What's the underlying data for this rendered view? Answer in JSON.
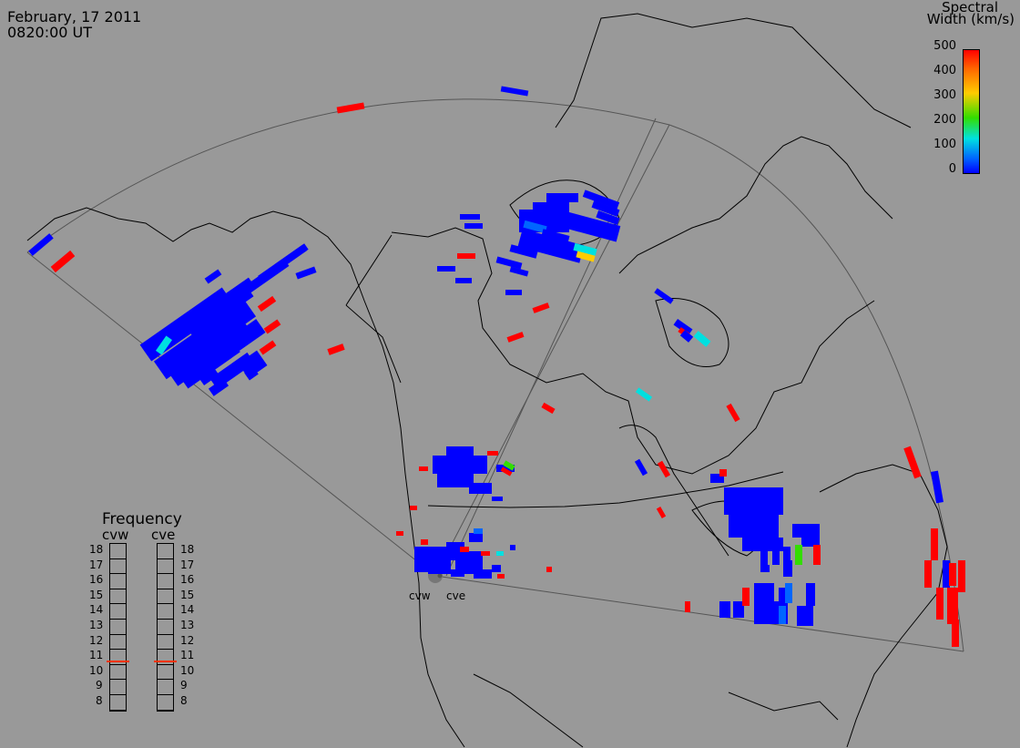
{
  "header": {
    "date": "February, 17 2011",
    "time": "0820:00 UT"
  },
  "colorbar": {
    "title_line1": "Spectral",
    "title_line2": "Width (km/s)",
    "ticks": [
      "500",
      "400",
      "300",
      "200",
      "100",
      "0"
    ]
  },
  "frequency": {
    "title": "Frequency",
    "radars": [
      "cvw",
      "cve"
    ],
    "levels": [
      "18",
      "17",
      "16",
      "15",
      "14",
      "13",
      "12",
      "11",
      "10",
      "9",
      "8"
    ],
    "selected": {
      "cvw": 10.8,
      "cve": 10.8
    }
  },
  "radar_labels": {
    "west": "cvw",
    "east": "cve"
  },
  "colors": {
    "background": "#999999",
    "low": "#0000ff",
    "high": "#ff0000",
    "mid": "#00e0e0",
    "marker": "#ff3300"
  }
}
